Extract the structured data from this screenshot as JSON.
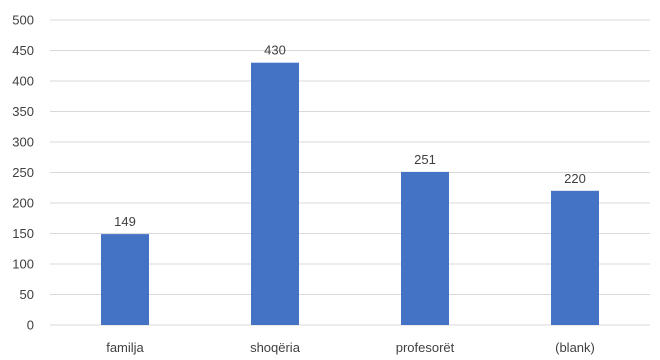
{
  "chart_data": {
    "type": "bar",
    "title": "",
    "xlabel": "",
    "ylabel": "",
    "categories": [
      "familja",
      "shoqëria",
      "profesorët",
      "(blank)"
    ],
    "values": [
      149,
      430,
      251,
      220
    ],
    "ylim": [
      0,
      500
    ],
    "yticks": [
      "0",
      "50",
      "100",
      "150",
      "200",
      "250",
      "300",
      "350",
      "400",
      "450",
      "500"
    ],
    "data_labels": [
      "149",
      "430",
      "251",
      "220"
    ],
    "bar_color": "#4472c4",
    "grid": true,
    "legend": "none"
  }
}
